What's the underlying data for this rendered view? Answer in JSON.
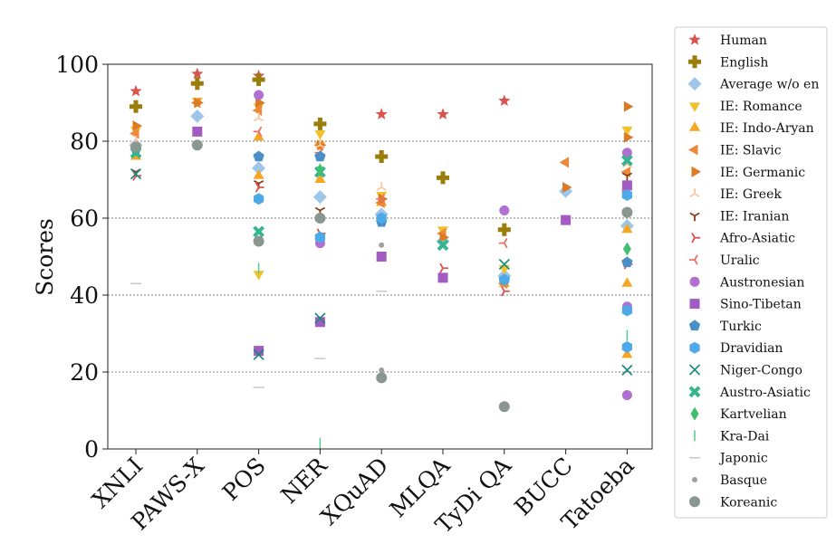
{
  "chart_data": {
    "type": "scatter",
    "ylabel": "Scores",
    "ylim": [
      0,
      100
    ],
    "yticks": [
      0,
      20,
      40,
      60,
      80,
      100
    ],
    "grid": "horizontal dashed",
    "legend_position": "right",
    "categories": [
      "XNLI",
      "PAWS-X",
      "POS",
      "NER",
      "XQuAD",
      "MLQA",
      "TyDi QA",
      "BUCC",
      "Tatoeba"
    ],
    "series": [
      {
        "name": "Human",
        "color": "#d9534f",
        "marker": "star",
        "points": [
          [
            "XNLI",
            93
          ],
          [
            "PAWS-X",
            97.5
          ],
          [
            "POS",
            97
          ],
          [
            "XQuAD",
            87
          ],
          [
            "MLQA",
            87
          ],
          [
            "TyDi QA",
            90.5
          ]
        ]
      },
      {
        "name": "English",
        "color": "#9a7d0a",
        "marker": "plus",
        "points": [
          [
            "XNLI",
            89
          ],
          [
            "PAWS-X",
            95
          ],
          [
            "POS",
            96
          ],
          [
            "NER",
            84.5
          ],
          [
            "XQuAD",
            76
          ],
          [
            "MLQA",
            70.5
          ],
          [
            "TyDi QA",
            57
          ]
        ]
      },
      {
        "name": "Average w/o en",
        "color": "#9ec6e8",
        "marker": "diamond",
        "points": [
          [
            "XNLI",
            79
          ],
          [
            "PAWS-X",
            86.5
          ],
          [
            "POS",
            73
          ],
          [
            "NER",
            65.5
          ],
          [
            "XQuAD",
            61
          ],
          [
            "MLQA",
            54
          ],
          [
            "TyDi QA",
            45
          ],
          [
            "BUCC",
            67
          ],
          [
            "Tatoeba",
            58
          ]
        ]
      },
      {
        "name": "IE: Romance",
        "color": "#f2c12e",
        "marker": "tri-down",
        "points": [
          [
            "XNLI",
            83
          ],
          [
            "PAWS-X",
            90.5
          ],
          [
            "POS",
            89
          ],
          [
            "POS",
            45.5
          ],
          [
            "NER",
            82
          ],
          [
            "NER",
            79
          ],
          [
            "XQuAD",
            66
          ],
          [
            "MLQA",
            57
          ],
          [
            "TyDi QA",
            47
          ],
          [
            "Tatoeba",
            83
          ]
        ]
      },
      {
        "name": "IE: Indo-Aryan",
        "color": "#f5a623",
        "marker": "tri-up",
        "points": [
          [
            "XNLI",
            76
          ],
          [
            "POS",
            81
          ],
          [
            "POS",
            71
          ],
          [
            "NER",
            70
          ],
          [
            "XQuAD",
            64
          ],
          [
            "TyDi QA",
            43
          ],
          [
            "Tatoeba",
            57
          ],
          [
            "Tatoeba",
            43
          ],
          [
            "Tatoeba",
            24.5
          ]
        ]
      },
      {
        "name": "IE: Slavic",
        "color": "#ec8a3a",
        "marker": "tri-left",
        "points": [
          [
            "XNLI",
            82
          ],
          [
            "PAWS-X",
            90
          ],
          [
            "POS",
            88
          ],
          [
            "NER",
            79
          ],
          [
            "XQuAD",
            64
          ],
          [
            "MLQA",
            56
          ],
          [
            "TyDi QA",
            43
          ],
          [
            "BUCC",
            74.5
          ],
          [
            "Tatoeba",
            72
          ]
        ]
      },
      {
        "name": "IE: Germanic",
        "color": "#dd7a26",
        "marker": "tri-right",
        "points": [
          [
            "XNLI",
            84
          ],
          [
            "PAWS-X",
            90
          ],
          [
            "POS",
            90
          ],
          [
            "NER",
            79
          ],
          [
            "XQuAD",
            65
          ],
          [
            "MLQA",
            55
          ],
          [
            "BUCC",
            68
          ],
          [
            "Tatoeba",
            89
          ],
          [
            "Tatoeba",
            81
          ]
        ]
      },
      {
        "name": "IE: Greek",
        "color": "#f7c9a0",
        "marker": "y-down",
        "points": [
          [
            "XNLI",
            80
          ],
          [
            "POS",
            86
          ],
          [
            "NER",
            79
          ],
          [
            "XQuAD",
            68
          ],
          [
            "Tatoeba",
            74
          ]
        ]
      },
      {
        "name": "IE: Iranian",
        "color": "#8b3a1a",
        "marker": "y-up",
        "points": [
          [
            "XNLI",
            72
          ],
          [
            "POS",
            69
          ],
          [
            "NER",
            62
          ],
          [
            "Tatoeba",
            71
          ]
        ]
      },
      {
        "name": "Afro-Asiatic",
        "color": "#d9534f",
        "marker": "y-left",
        "points": [
          [
            "XNLI",
            71
          ],
          [
            "POS",
            68
          ],
          [
            "NER",
            56
          ],
          [
            "MLQA",
            47
          ],
          [
            "TyDi QA",
            41
          ],
          [
            "Tatoeba",
            48
          ]
        ]
      },
      {
        "name": "Uralic",
        "color": "#e8756a",
        "marker": "y-right",
        "points": [
          [
            "POS",
            82.5
          ],
          [
            "NER",
            77
          ],
          [
            "XQuAD",
            65
          ],
          [
            "TyDi QA",
            53.5
          ],
          [
            "Tatoeba",
            67
          ]
        ]
      },
      {
        "name": "Austronesian",
        "color": "#b06fd1",
        "marker": "circle",
        "points": [
          [
            "POS",
            92
          ],
          [
            "NER",
            53.5
          ],
          [
            "TyDi QA",
            62
          ],
          [
            "Tatoeba",
            77
          ],
          [
            "Tatoeba",
            37
          ],
          [
            "Tatoeba",
            14
          ]
        ]
      },
      {
        "name": "Sino-Tibetan",
        "color": "#a35bc4",
        "marker": "square",
        "points": [
          [
            "PAWS-X",
            82.5
          ],
          [
            "POS",
            25.5
          ],
          [
            "NER",
            33
          ],
          [
            "XQuAD",
            50
          ],
          [
            "MLQA",
            44.5
          ],
          [
            "BUCC",
            59.5
          ],
          [
            "Tatoeba",
            68.5
          ]
        ]
      },
      {
        "name": "Turkic",
        "color": "#4a8fc7",
        "marker": "pentagon",
        "points": [
          [
            "XNLI",
            78
          ],
          [
            "POS",
            76
          ],
          [
            "NER",
            76
          ],
          [
            "XQuAD",
            59
          ],
          [
            "TyDi QA",
            44
          ],
          [
            "Tatoeba",
            48.5
          ]
        ]
      },
      {
        "name": "Dravidian",
        "color": "#4ea9e8",
        "marker": "hexagon",
        "points": [
          [
            "POS",
            65
          ],
          [
            "NER",
            55
          ],
          [
            "XQuAD",
            60
          ],
          [
            "TyDi QA",
            44
          ],
          [
            "Tatoeba",
            66
          ],
          [
            "Tatoeba",
            36
          ],
          [
            "Tatoeba",
            26.5
          ]
        ]
      },
      {
        "name": "Niger-Congo",
        "color": "#1a8a7a",
        "marker": "x",
        "points": [
          [
            "XNLI",
            71.5
          ],
          [
            "POS",
            24.5
          ],
          [
            "NER",
            34
          ],
          [
            "TyDi QA",
            48
          ],
          [
            "Tatoeba",
            20.5
          ]
        ]
      },
      {
        "name": "Austro-Asiatic",
        "color": "#35b58f",
        "marker": "x-bold",
        "points": [
          [
            "XNLI",
            77
          ],
          [
            "POS",
            56.5
          ],
          [
            "NER",
            72
          ],
          [
            "MLQA",
            53
          ],
          [
            "Tatoeba",
            75
          ]
        ]
      },
      {
        "name": "Kartvelian",
        "color": "#3fbf6f",
        "marker": "thin-diamond",
        "points": [
          [
            "NER",
            72.5
          ],
          [
            "Tatoeba",
            52
          ]
        ]
      },
      {
        "name": "Kra-Dai",
        "color": "#4fcf8f",
        "marker": "vline",
        "points": [
          [
            "POS",
            47
          ],
          [
            "NER",
            1.5
          ],
          [
            "Tatoeba",
            29.5
          ]
        ]
      },
      {
        "name": "Japonic",
        "color": "#c8c8c8",
        "marker": "hline",
        "points": [
          [
            "XNLI",
            43
          ],
          [
            "POS",
            16
          ],
          [
            "NER",
            23.5
          ],
          [
            "XQuAD",
            41
          ]
        ]
      },
      {
        "name": "Basque",
        "color": "#a0a0a0",
        "marker": "point",
        "points": [
          [
            "XQuAD",
            53
          ],
          [
            "XQuAD",
            20.5
          ]
        ]
      },
      {
        "name": "Koreanic",
        "color": "#8a9690",
        "marker": "circle-lg",
        "points": [
          [
            "XNLI",
            78.5
          ],
          [
            "PAWS-X",
            79
          ],
          [
            "POS",
            54
          ],
          [
            "NER",
            60
          ],
          [
            "XQuAD",
            18.5
          ],
          [
            "TyDi QA",
            11
          ],
          [
            "Tatoeba",
            61.5
          ]
        ]
      }
    ]
  }
}
